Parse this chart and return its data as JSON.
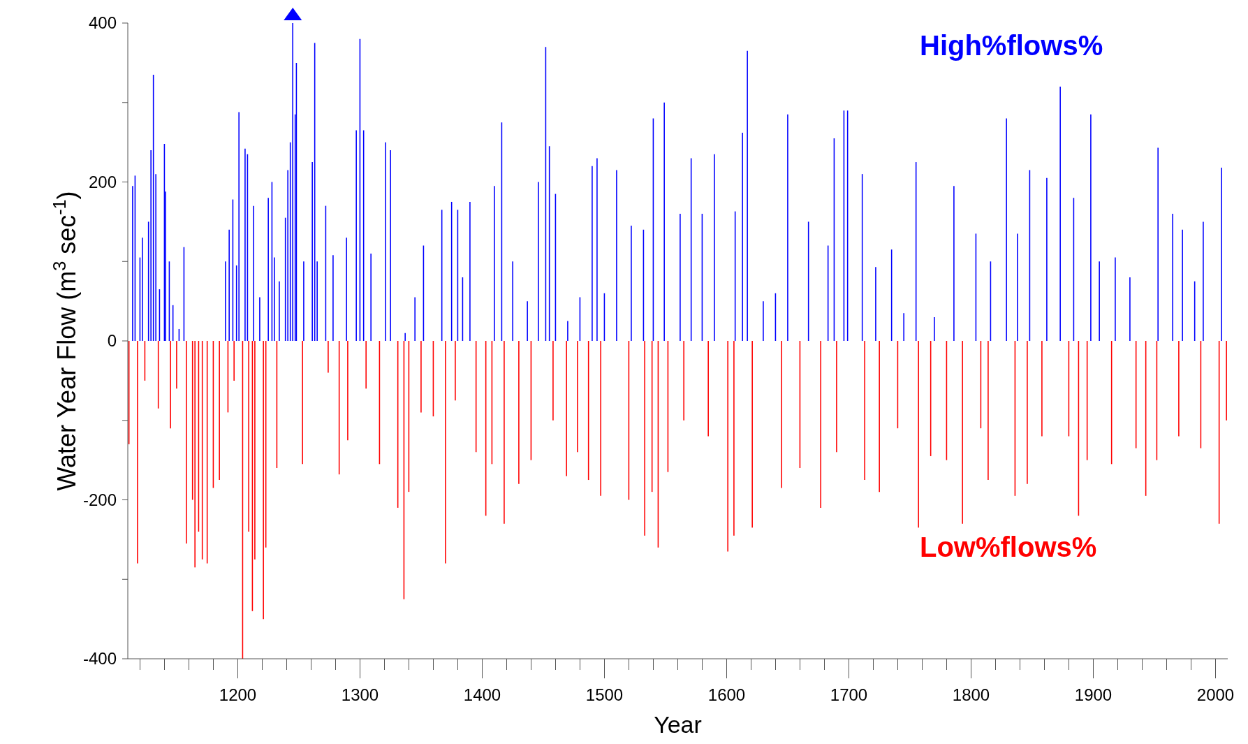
{
  "chart_data": {
    "type": "bar",
    "xlabel": "Year",
    "ylabel": "Water Year Flow (m$^{3}$ sec$^{-1}$)",
    "annotations": [
      "High%flows%",
      "Low%flows%"
    ],
    "x": [
      1111,
      1114,
      1116,
      1118,
      1120,
      1122,
      1124,
      1127,
      1129,
      1131,
      1133,
      1135,
      1136,
      1140,
      1141,
      1144,
      1145,
      1147,
      1150,
      1152,
      1156,
      1158,
      1163,
      1165,
      1168,
      1171,
      1175,
      1180,
      1185,
      1190,
      1192,
      1193,
      1196,
      1197,
      1199,
      1201,
      1204,
      1206,
      1208,
      1209,
      1212,
      1213,
      1214,
      1218,
      1221,
      1223,
      1225,
      1228,
      1230,
      1232,
      1234,
      1239,
      1241,
      1243,
      1245,
      1247,
      1248,
      1253,
      1254,
      1261,
      1263,
      1265,
      1272,
      1274,
      1278,
      1283,
      1289,
      1290,
      1297,
      1300,
      1303,
      1305,
      1309,
      1316,
      1321,
      1325,
      1331,
      1336,
      1337,
      1340,
      1345,
      1350,
      1352,
      1360,
      1367,
      1370,
      1375,
      1378,
      1380,
      1384,
      1390,
      1395,
      1403,
      1408,
      1410,
      1416,
      1418,
      1425,
      1430,
      1437,
      1440,
      1446,
      1452,
      1455,
      1458,
      1460,
      1469,
      1470,
      1478,
      1480,
      1487,
      1490,
      1494,
      1497,
      1500,
      1510,
      1520,
      1522,
      1532,
      1533,
      1539,
      1540,
      1544,
      1549,
      1552,
      1562,
      1565,
      1571,
      1580,
      1585,
      1590,
      1601,
      1606,
      1607,
      1613,
      1617,
      1621,
      1630,
      1640,
      1645,
      1650,
      1660,
      1667,
      1677,
      1683,
      1688,
      1690,
      1696,
      1699,
      1711,
      1713,
      1722,
      1725,
      1735,
      1740,
      1745,
      1755,
      1757,
      1767,
      1770,
      1780,
      1786,
      1793,
      1804,
      1808,
      1814,
      1816,
      1829,
      1836,
      1838,
      1846,
      1848,
      1858,
      1862,
      1873,
      1880,
      1884,
      1888,
      1895,
      1898,
      1905,
      1915,
      1918,
      1930,
      1935,
      1943,
      1952,
      1953,
      1965,
      1970,
      1973,
      1983,
      1988,
      1990,
      2003,
      2005,
      2009
    ],
    "values": [
      -130,
      195,
      208,
      -280,
      105,
      130,
      -50,
      150,
      240,
      335,
      210,
      -85,
      65,
      248,
      188,
      100,
      -110,
      45,
      -60,
      15,
      118,
      -255,
      -200,
      -285,
      -240,
      -275,
      -280,
      -185,
      -175,
      100,
      -90,
      140,
      178,
      -50,
      95,
      288,
      -400,
      242,
      235,
      -240,
      -340,
      170,
      -275,
      55,
      -350,
      -260,
      180,
      200,
      105,
      -160,
      75,
      155,
      215,
      250,
      400,
      285,
      350,
      -155,
      100,
      225,
      375,
      100,
      170,
      -40,
      108,
      -168,
      130,
      -125,
      265,
      380,
      265,
      -60,
      110,
      -155,
      250,
      240,
      -210,
      -325,
      10,
      -190,
      55,
      -90,
      120,
      -95,
      165,
      -280,
      175,
      -75,
      165,
      80,
      175,
      -140,
      -220,
      -155,
      195,
      275,
      -230,
      100,
      -180,
      50,
      -150,
      200,
      370,
      245,
      -100,
      185,
      -170,
      25,
      -140,
      55,
      -175,
      220,
      230,
      -195,
      60,
      215,
      -200,
      145,
      140,
      -245,
      -190,
      280,
      -260,
      300,
      -165,
      160,
      -100,
      230,
      160,
      -120,
      235,
      -265,
      -245,
      163,
      262,
      365,
      -235,
      50,
      60,
      -185,
      285,
      -160,
      150,
      -210,
      120,
      255,
      -140,
      290,
      290,
      210,
      -175,
      93,
      -190,
      115,
      -110,
      35,
      225,
      -235,
      -145,
      30,
      -150,
      195,
      -230,
      135,
      -110,
      -175,
      100,
      280,
      -195,
      135,
      -180,
      215,
      -120,
      205,
      320,
      -120,
      180,
      -220,
      -150,
      285,
      100,
      -155,
      105,
      80,
      -135,
      -195,
      -150,
      243,
      160,
      -120,
      140,
      75,
      -135,
      150,
      -230,
      218,
      -100
    ],
    "colors": [
      "#ff0000",
      "#0000ff",
      "#0000ff",
      "#ff0000",
      "#0000ff",
      "#0000ff",
      "#ff0000",
      "#0000ff",
      "#0000ff",
      "#0000ff",
      "#0000ff",
      "#ff0000",
      "#0000ff",
      "#0000ff",
      "#0000ff",
      "#0000ff",
      "#ff0000",
      "#0000ff",
      "#ff0000",
      "#0000ff",
      "#0000ff",
      "#ff0000",
      "#ff0000",
      "#ff0000",
      "#ff0000",
      "#ff0000",
      "#ff0000",
      "#ff0000",
      "#ff0000",
      "#0000ff",
      "#ff0000",
      "#0000ff",
      "#0000ff",
      "#ff0000",
      "#0000ff",
      "#0000ff",
      "#ff0000",
      "#0000ff",
      "#0000ff",
      "#ff0000",
      "#ff0000",
      "#0000ff",
      "#ff0000",
      "#0000ff",
      "#ff0000",
      "#ff0000",
      "#0000ff",
      "#0000ff",
      "#0000ff",
      "#ff0000",
      "#0000ff",
      "#0000ff",
      "#0000ff",
      "#0000ff",
      "#0000ff",
      "#0000ff",
      "#0000ff",
      "#ff0000",
      "#0000ff",
      "#0000ff",
      "#0000ff",
      "#0000ff",
      "#0000ff",
      "#ff0000",
      "#0000ff",
      "#ff0000",
      "#0000ff",
      "#ff0000",
      "#0000ff",
      "#0000ff",
      "#0000ff",
      "#ff0000",
      "#0000ff",
      "#ff0000",
      "#0000ff",
      "#0000ff",
      "#ff0000",
      "#ff0000",
      "#0000ff",
      "#ff0000",
      "#0000ff",
      "#ff0000",
      "#0000ff",
      "#ff0000",
      "#0000ff",
      "#ff0000",
      "#0000ff",
      "#ff0000",
      "#0000ff",
      "#0000ff",
      "#0000ff",
      "#ff0000",
      "#ff0000",
      "#ff0000",
      "#0000ff",
      "#0000ff",
      "#ff0000",
      "#0000ff",
      "#ff0000",
      "#0000ff",
      "#ff0000",
      "#0000ff",
      "#0000ff",
      "#0000ff",
      "#ff0000",
      "#0000ff",
      "#ff0000",
      "#0000ff",
      "#ff0000",
      "#0000ff",
      "#ff0000",
      "#0000ff",
      "#0000ff",
      "#ff0000",
      "#0000ff",
      "#0000ff",
      "#ff0000",
      "#0000ff",
      "#0000ff",
      "#ff0000",
      "#ff0000",
      "#0000ff",
      "#ff0000",
      "#0000ff",
      "#ff0000",
      "#0000ff",
      "#ff0000",
      "#0000ff",
      "#0000ff",
      "#ff0000",
      "#0000ff",
      "#ff0000",
      "#ff0000",
      "#0000ff",
      "#0000ff",
      "#0000ff",
      "#ff0000",
      "#0000ff",
      "#0000ff",
      "#ff0000",
      "#0000ff",
      "#ff0000",
      "#0000ff",
      "#ff0000",
      "#0000ff",
      "#0000ff",
      "#ff0000",
      "#0000ff",
      "#0000ff",
      "#0000ff",
      "#ff0000",
      "#0000ff",
      "#ff0000",
      "#0000ff",
      "#ff0000",
      "#0000ff",
      "#0000ff",
      "#ff0000",
      "#ff0000",
      "#0000ff",
      "#ff0000",
      "#0000ff",
      "#ff0000",
      "#0000ff",
      "#ff0000",
      "#ff0000",
      "#0000ff",
      "#0000ff",
      "#ff0000",
      "#0000ff",
      "#ff0000",
      "#0000ff",
      "#ff0000",
      "#0000ff",
      "#0000ff",
      "#ff0000",
      "#0000ff",
      "#ff0000",
      "#ff0000",
      "#0000ff",
      "#0000ff",
      "#ff0000",
      "#0000ff",
      "#0000ff",
      "#ff0000",
      "#ff0000",
      "#ff0000",
      "#0000ff",
      "#0000ff",
      "#ff0000",
      "#0000ff",
      "#0000ff",
      "#ff0000",
      "#0000ff",
      "#ff0000",
      "#0000ff",
      "#ff0000"
    ],
    "xlim": [
      1110,
      2010
    ],
    "xticks": [
      {
        "value": 1120,
        "label": null
      },
      {
        "value": 1140,
        "label": null
      },
      {
        "value": 1160,
        "label": null
      },
      {
        "value": 1180,
        "label": null
      },
      1200,
      {
        "value": 1220,
        "label": null
      },
      {
        "value": 1240,
        "label": null
      },
      {
        "value": 1260,
        "label": null
      },
      {
        "value": 1280,
        "label": null
      },
      1300,
      {
        "value": 1320,
        "label": null
      },
      {
        "value": 1340,
        "label": null
      },
      {
        "value": 1360,
        "label": null
      },
      {
        "value": 1380,
        "label": null
      },
      1400,
      {
        "value": 1420,
        "label": null
      },
      {
        "value": 1440,
        "label": null
      },
      {
        "value": 1460,
        "label": null
      },
      {
        "value": 1480,
        "label": null
      },
      1500,
      {
        "value": 1520,
        "label": null
      },
      {
        "value": 1540,
        "label": null
      },
      {
        "value": 1560,
        "label": null
      },
      {
        "value": 1580,
        "label": null
      },
      1600,
      {
        "value": 1620,
        "label": null
      },
      {
        "value": 1640,
        "label": null
      },
      {
        "value": 1660,
        "label": null
      },
      {
        "value": 1680,
        "label": null
      },
      1700,
      {
        "value": 1720,
        "label": null
      },
      {
        "value": 1740,
        "label": null
      },
      {
        "value": 1760,
        "label": null
      },
      {
        "value": 1780,
        "label": null
      },
      1800,
      {
        "value": 1820,
        "label": null
      },
      {
        "value": 1840,
        "label": null
      },
      {
        "value": 1860,
        "label": null
      },
      {
        "value": 1880,
        "label": null
      },
      1900,
      {
        "value": 1920,
        "label": null
      },
      {
        "value": 1940,
        "label": null
      },
      {
        "value": 1960,
        "label": null
      },
      {
        "value": 1980,
        "label": null
      },
      2000
    ],
    "ylim": [
      -400,
      400
    ],
    "yticks": [
      -400,
      {
        "value": -300,
        "label": null
      },
      -200,
      {
        "value": -100,
        "label": null
      },
      0,
      {
        "value": 100,
        "label": null
      },
      200,
      {
        "value": 300,
        "label": null
      },
      400
    ],
    "grid": false,
    "legend": false
  }
}
